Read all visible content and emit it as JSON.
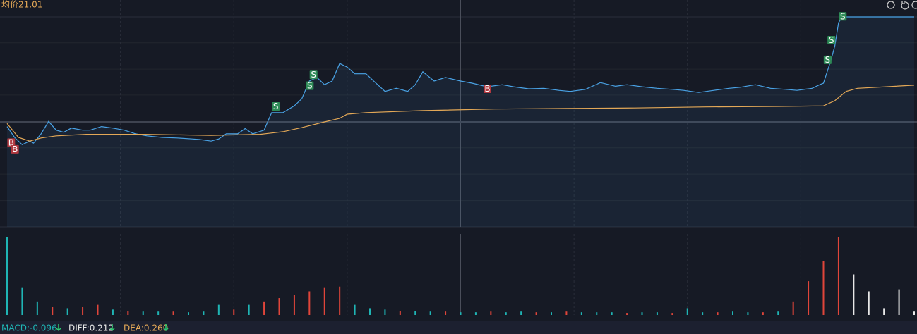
{
  "header": {
    "avg_label": "均价21.01"
  },
  "chart_data": [
    {
      "type": "line",
      "xlim": [
        0,
        240
      ],
      "xticks": [
        30,
        60,
        90,
        120,
        150,
        180,
        210
      ],
      "ylim": [
        18.27,
        22.33
      ],
      "yticks": [
        18.78,
        19.29,
        19.8,
        20.3,
        20.82,
        21.32,
        21.83
      ],
      "reference": 20.3,
      "grid": true,
      "series": [
        {
          "name": "price",
          "color": "#4aa3e6",
          "x": [
            0,
            2,
            4,
            6,
            7,
            9,
            11,
            13,
            15,
            17,
            20,
            22,
            25,
            28,
            31,
            34,
            37,
            41,
            45,
            49,
            51,
            54,
            56,
            58,
            61,
            63,
            65,
            68,
            70,
            73,
            76,
            78,
            80,
            82,
            84,
            86,
            88,
            90,
            92,
            95,
            97,
            100,
            103,
            106,
            108,
            110,
            113,
            116,
            120,
            123,
            127,
            131,
            134,
            138,
            142,
            146,
            149,
            153,
            157,
            161,
            164,
            168,
            172,
            176,
            179,
            183,
            187,
            191,
            194,
            198,
            202,
            206,
            209,
            213,
            215,
            216,
            218,
            219,
            220,
            221,
            222,
            240
          ],
          "values": [
            20.21,
            20.0,
            19.86,
            19.93,
            19.89,
            20.07,
            20.31,
            20.14,
            20.1,
            20.18,
            20.14,
            20.14,
            20.21,
            20.18,
            20.14,
            20.07,
            20.03,
            20.0,
            19.99,
            19.97,
            19.96,
            19.93,
            19.97,
            20.07,
            20.07,
            20.17,
            20.07,
            20.14,
            20.48,
            20.48,
            20.61,
            20.75,
            21.09,
            21.16,
            21.02,
            21.09,
            21.43,
            21.36,
            21.23,
            21.23,
            21.09,
            20.89,
            20.95,
            20.89,
            21.02,
            21.27,
            21.09,
            21.16,
            21.09,
            21.05,
            20.98,
            21.02,
            20.98,
            20.94,
            20.95,
            20.91,
            20.89,
            20.93,
            21.06,
            20.99,
            21.02,
            20.98,
            20.95,
            20.93,
            20.91,
            20.87,
            20.91,
            20.95,
            20.97,
            21.02,
            20.95,
            20.93,
            20.91,
            20.95,
            21.02,
            21.05,
            21.5,
            21.77,
            22.22,
            22.33,
            22.33,
            22.33
          ]
        },
        {
          "name": "average",
          "color": "#e3a857",
          "x": [
            0,
            3,
            6,
            9,
            13,
            21,
            36,
            54,
            67,
            73,
            78,
            84,
            88,
            90,
            95,
            110,
            129,
            148,
            166,
            185,
            204,
            216,
            219,
            222,
            225,
            240
          ],
          "values": [
            20.27,
            20.0,
            19.93,
            19.99,
            20.03,
            20.06,
            20.06,
            20.04,
            20.06,
            20.11,
            20.19,
            20.3,
            20.37,
            20.45,
            20.48,
            20.52,
            20.55,
            20.56,
            20.57,
            20.59,
            20.6,
            20.61,
            20.71,
            20.89,
            20.95,
            21.01
          ]
        }
      ],
      "annotations": [
        {
          "label": "B",
          "x": 1,
          "y": 19.9
        },
        {
          "label": "B",
          "x": 2,
          "y": 19.77
        },
        {
          "label": "S",
          "x": 71,
          "y": 20.6
        },
        {
          "label": "S",
          "x": 80,
          "y": 21.0
        },
        {
          "label": "S",
          "x": 81,
          "y": 21.21
        },
        {
          "label": "B",
          "x": 127,
          "y": 20.94
        },
        {
          "label": "S",
          "x": 217,
          "y": 21.5
        },
        {
          "label": "S",
          "x": 218,
          "y": 21.88
        },
        {
          "label": "S",
          "x": 221,
          "y": 22.34
        }
      ]
    },
    {
      "type": "bar",
      "xlim": [
        0,
        240
      ],
      "xticks": [
        30,
        60,
        90,
        120,
        150,
        180,
        210
      ],
      "ylim": [
        0,
        120
      ],
      "grid": true,
      "x": [
        0,
        4,
        8,
        12,
        16,
        20,
        24,
        28,
        32,
        36,
        40,
        44,
        48,
        52,
        56,
        60,
        64,
        68,
        72,
        76,
        80,
        84,
        88,
        92,
        96,
        100,
        104,
        108,
        112,
        116,
        120,
        124,
        128,
        132,
        136,
        140,
        144,
        148,
        152,
        156,
        160,
        164,
        168,
        172,
        176,
        180,
        184,
        188,
        192,
        196,
        200,
        204,
        208,
        212,
        216,
        220,
        224,
        228,
        232,
        236,
        240
      ],
      "values": [
        115,
        40,
        20,
        12,
        10,
        12,
        15,
        8,
        6,
        5,
        5,
        5,
        4,
        5,
        15,
        8,
        15,
        20,
        25,
        30,
        35,
        40,
        42,
        15,
        10,
        8,
        6,
        6,
        5,
        5,
        4,
        4,
        5,
        4,
        5,
        4,
        4,
        5,
        4,
        4,
        4,
        3,
        4,
        4,
        3,
        10,
        4,
        4,
        5,
        4,
        4,
        5,
        20,
        50,
        80,
        115,
        60,
        35,
        10,
        38,
        5
      ],
      "colors": [
        "#1fb5b5",
        "#1fb5b5",
        "#1fb5b5",
        "#e0453a",
        "#1fb5b5",
        "#e0453a",
        "#e0453a",
        "#1fb5b5",
        "#e0453a",
        "#1fb5b5",
        "#1fb5b5",
        "#e0453a",
        "#1fb5b5",
        "#1fb5b5",
        "#1fb5b5",
        "#e0453a",
        "#1fb5b5",
        "#e0453a",
        "#e0453a",
        "#e0453a",
        "#e0453a",
        "#e0453a",
        "#e0453a",
        "#1fb5b5",
        "#1fb5b5",
        "#1fb5b5",
        "#e0453a",
        "#1fb5b5",
        "#1fb5b5",
        "#e0453a",
        "#1fb5b5",
        "#1fb5b5",
        "#e0453a",
        "#1fb5b5",
        "#1fb5b5",
        "#e0453a",
        "#1fb5b5",
        "#e0453a",
        "#1fb5b5",
        "#1fb5b5",
        "#1fb5b5",
        "#e0453a",
        "#1fb5b5",
        "#1fb5b5",
        "#e0453a",
        "#1fb5b5",
        "#1fb5b5",
        "#e0453a",
        "#1fb5b5",
        "#1fb5b5",
        "#e0453a",
        "#1fb5b5",
        "#e0453a",
        "#e0453a",
        "#e0453a",
        "#e0453a",
        "#e8e8e8",
        "#e8e8e8",
        "#e8e8e8",
        "#e8e8e8",
        "#e8e8e8"
      ]
    }
  ],
  "footer": {
    "macd": "MACD:-0.096",
    "diff": "DIFF:0.212",
    "dea": "DEA:0.260"
  }
}
